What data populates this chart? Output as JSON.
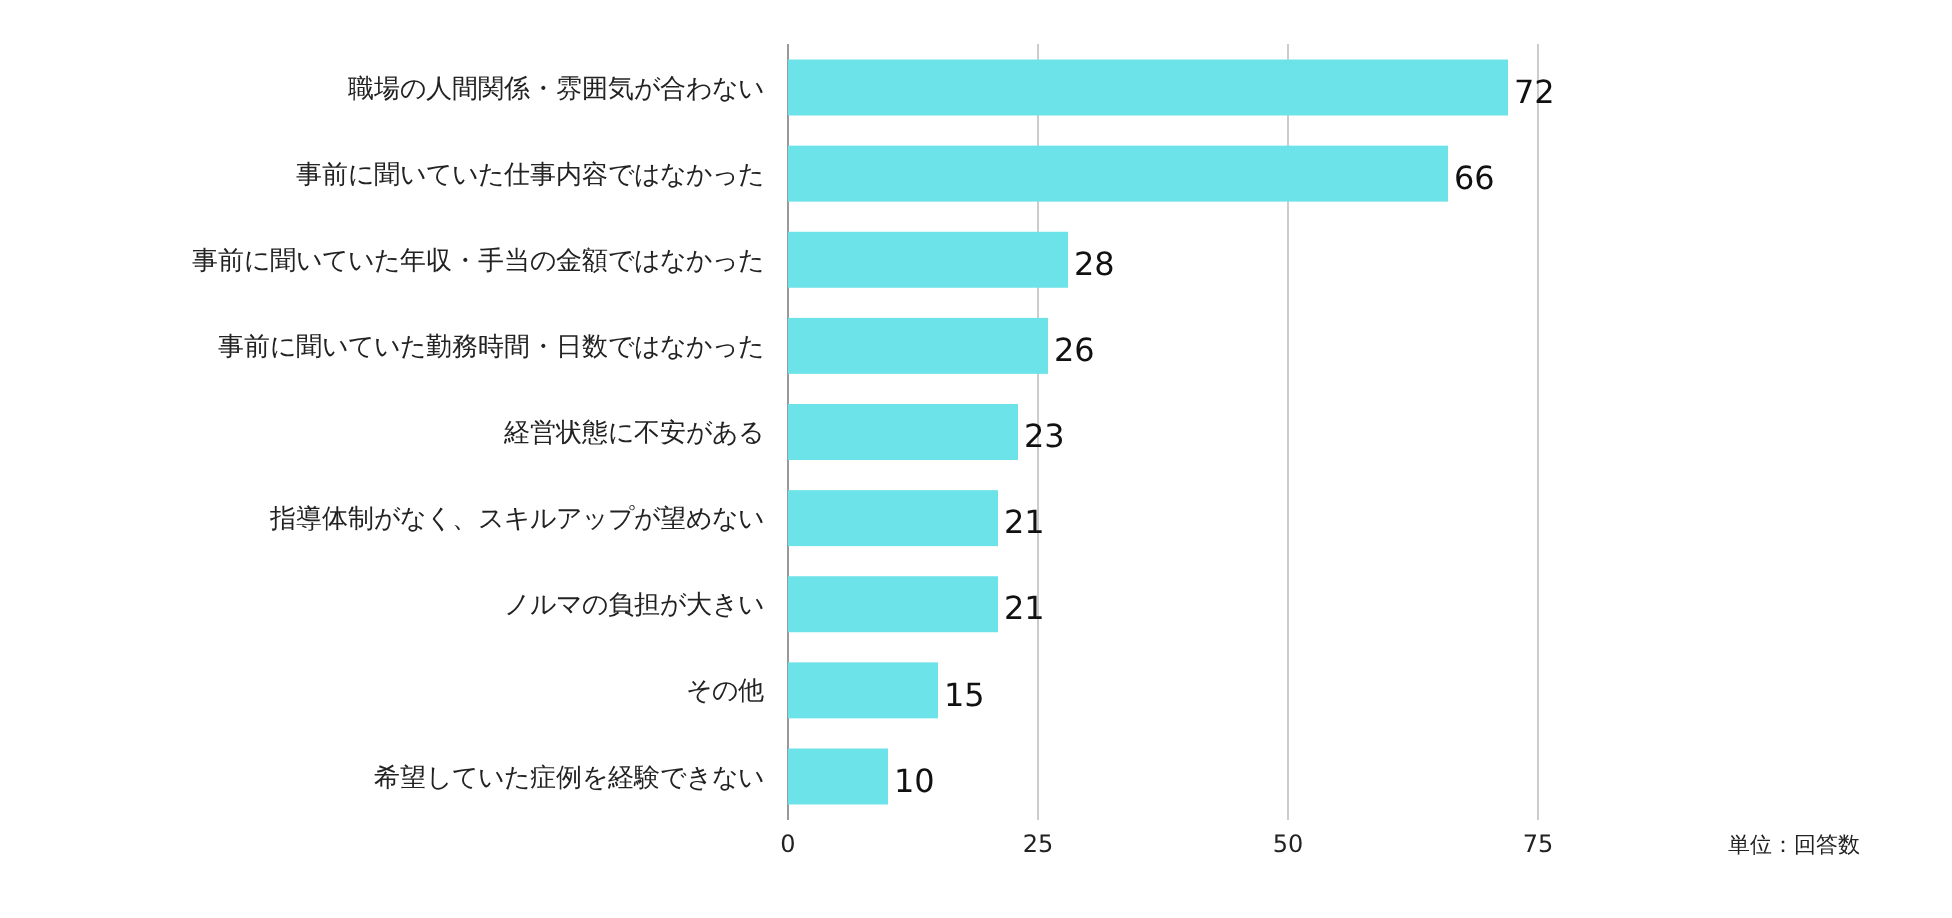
{
  "chart_data": {
    "type": "bar",
    "orientation": "horizontal",
    "categories": [
      "職場の人間関係・雰囲気が合わない",
      "事前に聞いていた仕事内容ではなかった",
      "事前に聞いていた年収・手当の金額ではなかった",
      "事前に聞いていた勤務時間・日数ではなかった",
      "経営状態に不安がある",
      "指導体制がなく、スキルアップが望めない",
      "ノルマの負担が大きい",
      "その他",
      "希望していた症例を経験できない"
    ],
    "values": [
      72,
      66,
      28,
      26,
      23,
      21,
      21,
      15,
      10
    ],
    "color": "#6ce3e8",
    "xlim": [
      0,
      75
    ],
    "xticks": [
      0,
      25,
      50,
      75
    ],
    "grid": "x",
    "data_labels": true,
    "annotations": [
      "単位：回答数"
    ]
  }
}
